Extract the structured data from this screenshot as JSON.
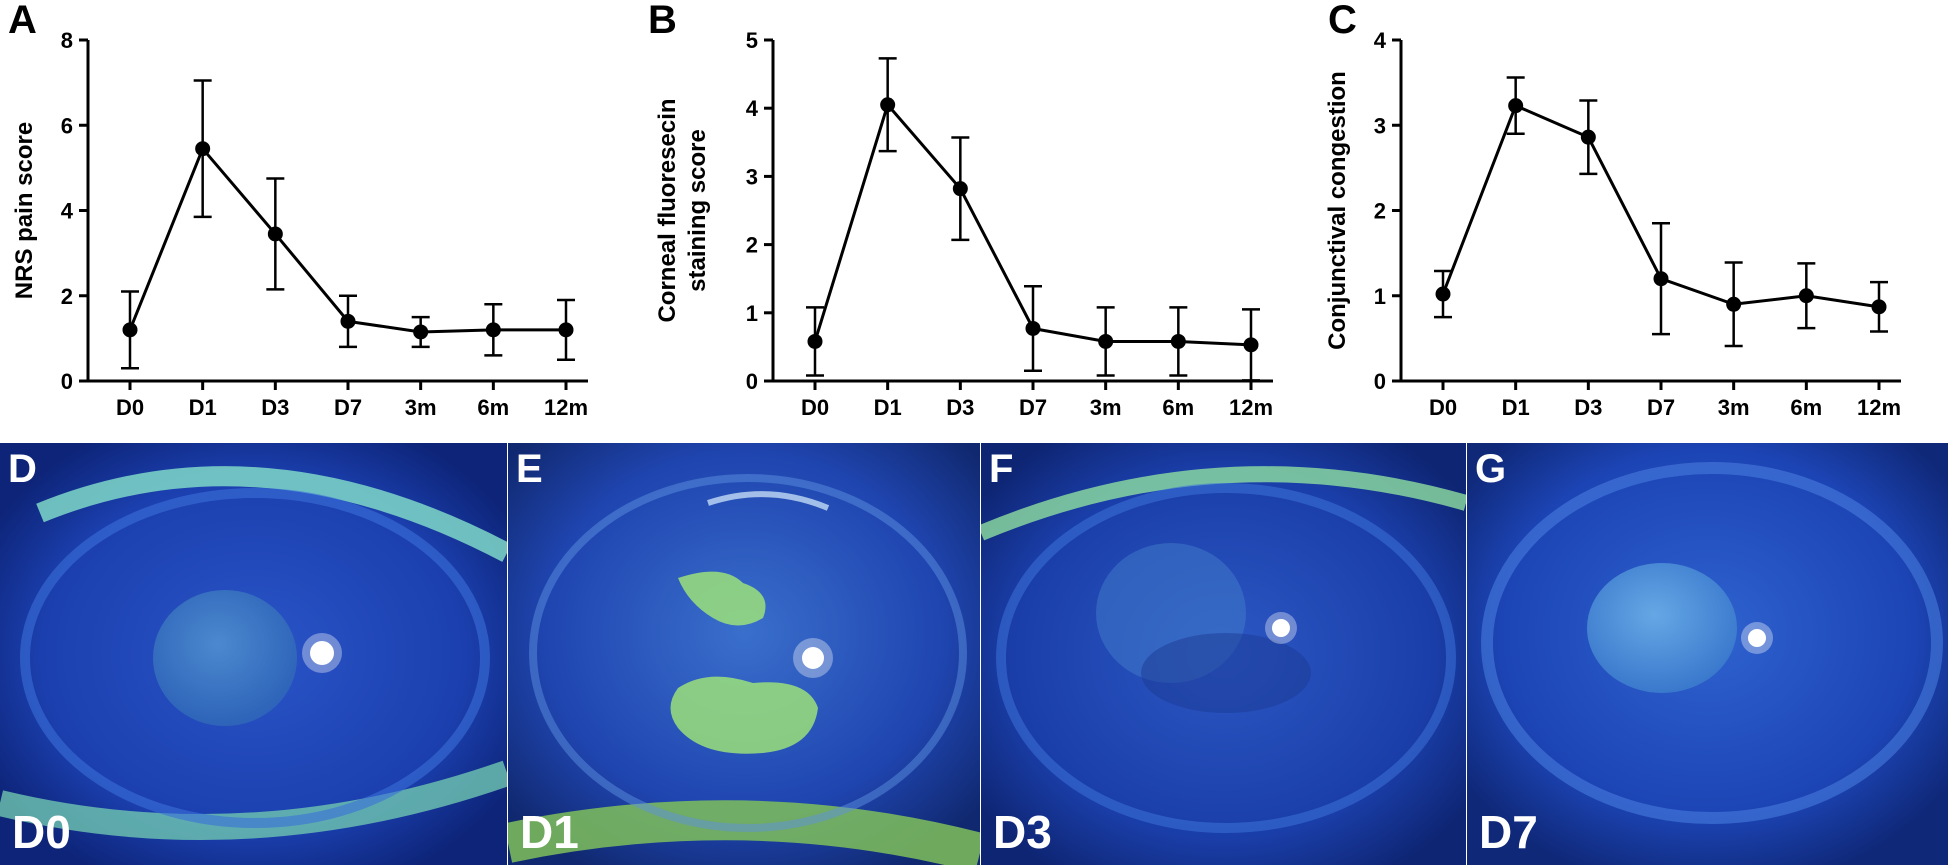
{
  "chart_data": [
    {
      "type": "line",
      "panel": "A",
      "categories": [
        "D0",
        "D1",
        "D3",
        "D7",
        "3m",
        "6m",
        "12m"
      ],
      "values": [
        1.2,
        5.45,
        3.45,
        1.4,
        1.15,
        1.2,
        1.2
      ],
      "error": [
        0.9,
        1.6,
        1.3,
        0.6,
        0.35,
        0.6,
        0.7
      ],
      "ylabel": "NRS pain score",
      "ylim": [
        0,
        8
      ],
      "yticks": [
        "0",
        "2",
        "4",
        "6",
        "8"
      ]
    },
    {
      "type": "line",
      "panel": "B",
      "categories": [
        "D0",
        "D1",
        "D3",
        "D7",
        "3m",
        "6m",
        "12m"
      ],
      "values": [
        0.58,
        4.05,
        2.82,
        0.77,
        0.58,
        0.58,
        0.53
      ],
      "error": [
        0.5,
        0.68,
        0.75,
        0.62,
        0.5,
        0.5,
        0.52
      ],
      "ylabel_lines": [
        "Corneal fluoresecin",
        "staining score"
      ],
      "ylim": [
        0,
        5
      ],
      "yticks": [
        "0",
        "1",
        "2",
        "3",
        "4",
        "5"
      ]
    },
    {
      "type": "line",
      "panel": "C",
      "categories": [
        "D0",
        "D1",
        "D3",
        "D7",
        "3m",
        "6m",
        "12m"
      ],
      "values": [
        1.02,
        3.23,
        2.86,
        1.2,
        0.9,
        1.0,
        0.87
      ],
      "error": [
        0.27,
        0.33,
        0.43,
        0.65,
        0.49,
        0.38,
        0.29
      ],
      "ylabel": "Conjunctival congestion",
      "ylim": [
        0,
        4
      ],
      "yticks": [
        "0",
        "1",
        "2",
        "3",
        "4"
      ]
    }
  ],
  "photos": [
    {
      "letter": "D",
      "day": "D0"
    },
    {
      "letter": "E",
      "day": "D1"
    },
    {
      "letter": "F",
      "day": "D3"
    },
    {
      "letter": "G",
      "day": "D7"
    }
  ],
  "colors": {
    "line": "#000000",
    "photo_text": "#ffffff",
    "photo_background": "#1a3fb0",
    "fluorescein_stain": "#9be07a"
  }
}
